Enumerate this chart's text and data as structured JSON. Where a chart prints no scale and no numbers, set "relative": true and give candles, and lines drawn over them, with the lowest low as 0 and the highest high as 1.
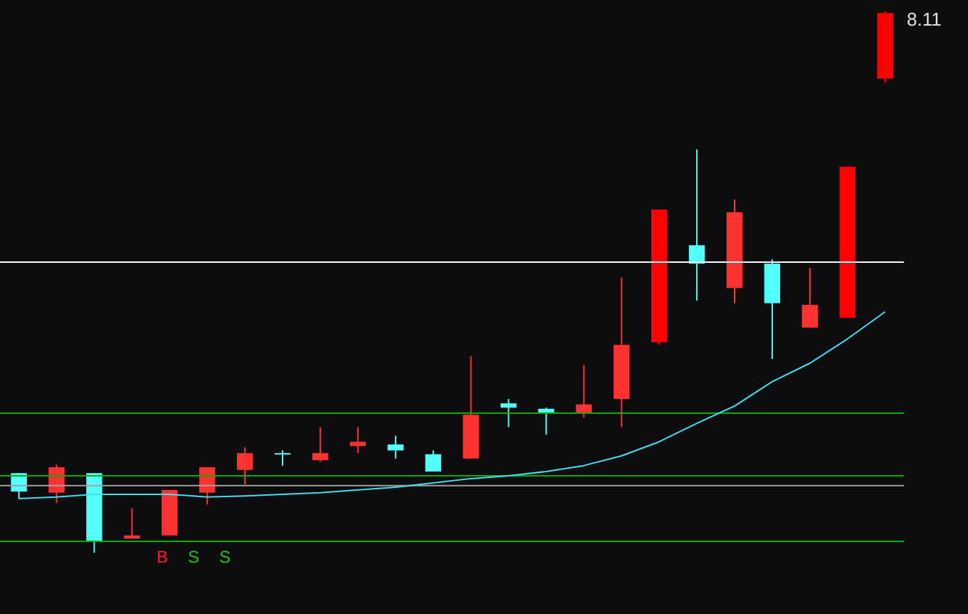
{
  "chart_data": {
    "type": "candlestick",
    "relative": true,
    "categories": [
      null,
      null,
      null,
      null,
      null,
      null,
      null,
      null,
      null,
      null,
      null,
      null,
      null,
      null,
      null,
      null,
      null,
      null,
      null,
      null,
      null,
      null,
      null,
      null
    ],
    "ohlc": [
      [
        0.147,
        0.147,
        0.1,
        0.113
      ],
      [
        0.111,
        0.163,
        0.092,
        0.158
      ],
      [
        0.147,
        0.147,
        0,
        0.021
      ],
      [
        0.026,
        0.082,
        0.026,
        0.032
      ],
      [
        0.032,
        0.116,
        0.032,
        0.116
      ],
      [
        0.111,
        0.158,
        0.089,
        0.158
      ],
      [
        0.153,
        0.195,
        0.126,
        0.184
      ],
      [
        0.184,
        0.189,
        0.161,
        0.182
      ],
      [
        0.171,
        0.232,
        0.168,
        0.184
      ],
      [
        0.197,
        0.232,
        0.184,
        0.205
      ],
      [
        0.2,
        0.216,
        0.174,
        0.189
      ],
      [
        0.182,
        0.189,
        0.15,
        0.15
      ],
      [
        0.174,
        0.363,
        0.174,
        0.255
      ],
      [
        0.276,
        0.284,
        0.232,
        0.268
      ],
      [
        0.266,
        0.268,
        0.218,
        0.258
      ],
      [
        0.258,
        0.347,
        0.25,
        0.274
      ],
      [
        0.284,
        0.508,
        0.232,
        0.384
      ],
      [
        0.389,
        0.634,
        0.384,
        0.634
      ],
      [
        0.568,
        0.745,
        0.466,
        0.534
      ],
      [
        0.489,
        0.653,
        0.461,
        0.629
      ],
      [
        0.534,
        0.542,
        0.358,
        0.461
      ],
      [
        0.416,
        0.526,
        0.416,
        0.458
      ],
      [
        0.434,
        0.713,
        0.434,
        0.713
      ],
      [
        0.876,
        1,
        0.868,
        0.997
      ]
    ],
    "colors": [
      "#54ffff",
      "#ff3232",
      "#54ffff",
      "#ff3232",
      "#ff3232",
      "#ff3232",
      "#ff3232",
      "#54ffff",
      "#ff3232",
      "#ff3232",
      "#54ffff",
      "#54ffff",
      "#ff3232",
      "#54ffff",
      "#54ffff",
      "#ff3232",
      "#ff3232",
      "#ff0000",
      "#54ffff",
      "#ff3232",
      "#54ffff",
      "#ff3232",
      "#ff0000",
      "#ff0000"
    ],
    "series": [
      {
        "type": "line",
        "color": "#40e0f0",
        "values": [
          0.1,
          0.103,
          0.108,
          0.108,
          0.108,
          0.103,
          0.105,
          0.108,
          0.111,
          0.116,
          0.121,
          0.129,
          0.137,
          0.142,
          0.15,
          0.161,
          0.179,
          0.205,
          0.239,
          0.271,
          0.316,
          0.35,
          0.395,
          0.445
        ]
      }
    ],
    "ref_lines": [
      {
        "axis": "y",
        "value": 0.258,
        "color": "#00b000"
      },
      {
        "axis": "y",
        "value": 0.142,
        "color": "#00b000"
      },
      {
        "axis": "y",
        "value": 0.124,
        "color": "#a0a0a0"
      },
      {
        "axis": "y",
        "value": 0.021,
        "color": "#00b000"
      },
      {
        "axis": "y",
        "value": 0.537,
        "color": "#ffffff"
      }
    ],
    "annotations": [
      "8.11",
      "B",
      "S",
      "S"
    ]
  }
}
